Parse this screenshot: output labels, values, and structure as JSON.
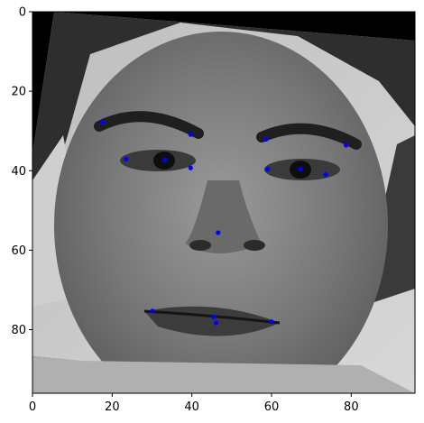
{
  "chart_data": {
    "type": "scatter",
    "background": "grayscale face image with facial keypoints",
    "xlim": [
      0,
      96
    ],
    "ylim": [
      96,
      0
    ],
    "y_axis_inverted": true,
    "xticks": [
      0,
      20,
      40,
      60,
      80
    ],
    "yticks": [
      0,
      20,
      40,
      60,
      80
    ],
    "xtick_labels": [
      "0",
      "20",
      "40",
      "60",
      "80"
    ],
    "ytick_labels": [
      "0",
      "20",
      "40",
      "60",
      "80"
    ],
    "grid": false,
    "legend": false,
    "marker_color": "#0000ff",
    "series": [
      {
        "points": [
          {
            "x": 17.6,
            "y": 27.8
          },
          {
            "x": 23.5,
            "y": 37.1
          },
          {
            "x": 33.2,
            "y": 37.3
          },
          {
            "x": 39.7,
            "y": 30.9
          },
          {
            "x": 39.7,
            "y": 39.3
          },
          {
            "x": 58.6,
            "y": 32.1
          },
          {
            "x": 59.0,
            "y": 39.6
          },
          {
            "x": 67.3,
            "y": 39.6
          },
          {
            "x": 73.6,
            "y": 41.0
          },
          {
            "x": 78.7,
            "y": 33.6
          },
          {
            "x": 46.6,
            "y": 55.6
          },
          {
            "x": 30.1,
            "y": 75.3
          },
          {
            "x": 45.5,
            "y": 76.8
          },
          {
            "x": 46.1,
            "y": 78.3
          },
          {
            "x": 60.0,
            "y": 78.0
          }
        ]
      }
    ]
  }
}
